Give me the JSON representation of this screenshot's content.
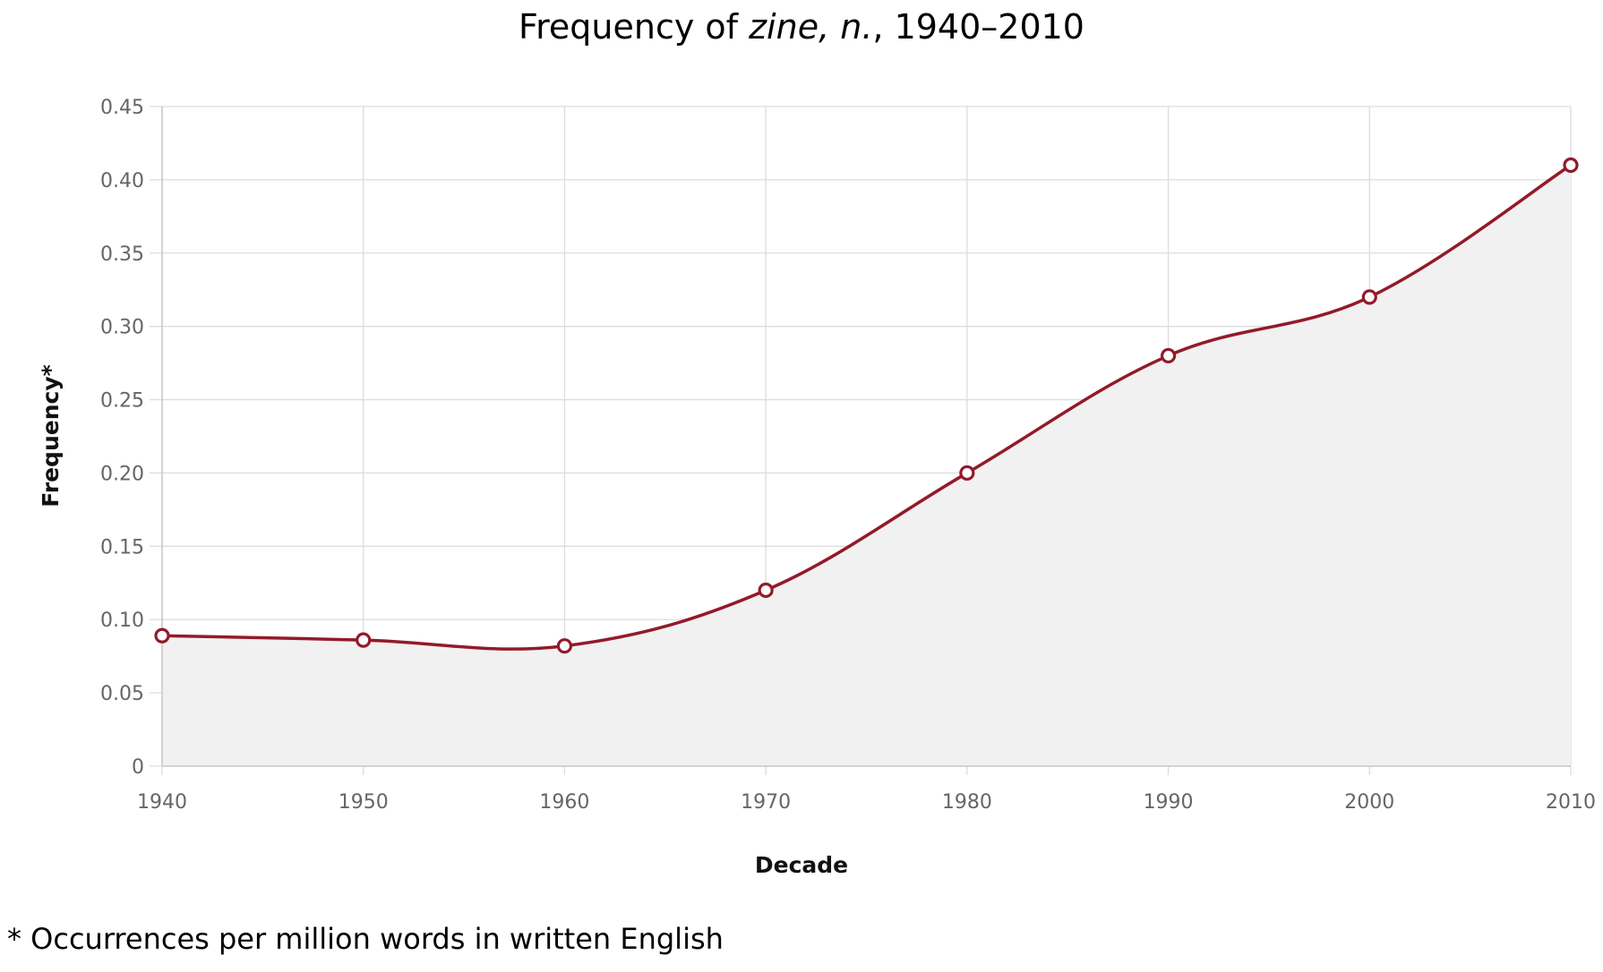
{
  "title": {
    "prefix": "Frequency of ",
    "headword": "zine, n.",
    "suffix": ", 1940–2010"
  },
  "footnote": "* Occurrences per million words in written English",
  "colors": {
    "line": "#931a2a",
    "area": "#f1f1f1",
    "grid": "#dddddd",
    "axis": "#c8c8c8",
    "marker_fill": "#ffffff"
  },
  "chart_data": {
    "type": "area",
    "title": "Frequency of zine, n., 1940–2010",
    "xlabel": "Decade",
    "ylabel": "Frequency*",
    "categories": [
      "1940",
      "1950",
      "1960",
      "1970",
      "1980",
      "1990",
      "2000",
      "2010"
    ],
    "series": [
      {
        "name": "zine, n.",
        "values": [
          0.089,
          0.086,
          0.082,
          0.12,
          0.2,
          0.28,
          0.32,
          0.41
        ]
      }
    ],
    "ylim": [
      0,
      0.45
    ],
    "yticks": [
      "0",
      "0.05",
      "0.10",
      "0.15",
      "0.20",
      "0.25",
      "0.30",
      "0.35",
      "0.40",
      "0.45"
    ],
    "grid": true,
    "legend": "none",
    "footnote": "* Occurrences per million words in written English"
  }
}
